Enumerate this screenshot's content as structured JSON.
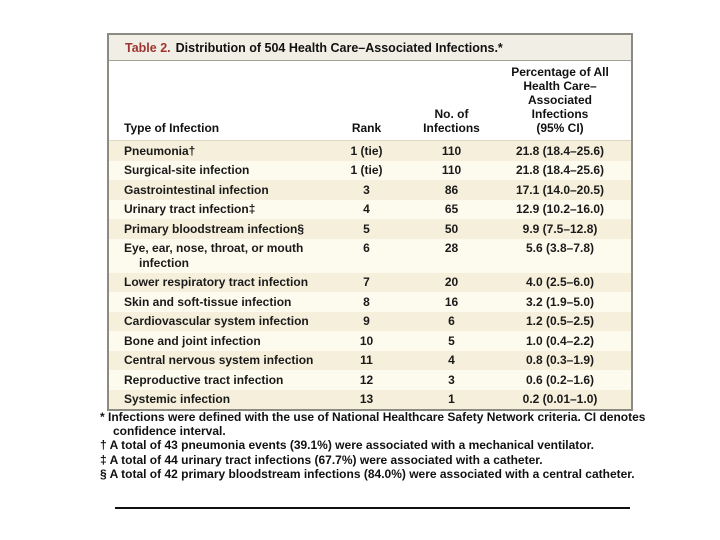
{
  "colors": {
    "title_label_red": "#9e3430",
    "card_border_gray": "#8b8b83",
    "title_bar_bg": "#f1efe5",
    "row_odd_bg": "#f6efdb",
    "row_even_bg": "#fdfaee",
    "header_bg": "#ffffff"
  },
  "table": {
    "title_label": "Table 2.",
    "title_text": "Distribution of 504 Health Care–Associated Infections.*",
    "columns": {
      "type": "Type of Infection",
      "rank": "Rank",
      "n": "No. of\nInfections",
      "pct": "Percentage of All\nHealth Care–\nAssociated\nInfections\n(95% CI)"
    },
    "rows": [
      {
        "type": "Pneumonia†",
        "rank": "1 (tie)",
        "n": "110",
        "pct": "21.8 (18.4–25.6)"
      },
      {
        "type": "Surgical-site infection",
        "rank": "1 (tie)",
        "n": "110",
        "pct": "21.8 (18.4–25.6)"
      },
      {
        "type": "Gastrointestinal infection",
        "rank": "3",
        "n": "86",
        "pct": "17.1 (14.0–20.5)"
      },
      {
        "type": "Urinary tract infection‡",
        "rank": "4",
        "n": "65",
        "pct": "12.9 (10.2–16.0)"
      },
      {
        "type": "Primary bloodstream infection§",
        "rank": "5",
        "n": "50",
        "pct": "9.9 (7.5–12.8)"
      },
      {
        "type": "Eye, ear, nose, throat, or mouth infection",
        "rank": "6",
        "n": "28",
        "pct": "5.6 (3.8–7.8)"
      },
      {
        "type": "Lower respiratory tract infection",
        "rank": "7",
        "n": "20",
        "pct": "4.0 (2.5–6.0)"
      },
      {
        "type": "Skin and soft-tissue infection",
        "rank": "8",
        "n": "16",
        "pct": "3.2 (1.9–5.0)"
      },
      {
        "type": "Cardiovascular system infection",
        "rank": "9",
        "n": "6",
        "pct": "1.2 (0.5–2.5)"
      },
      {
        "type": "Bone and joint infection",
        "rank": "10",
        "n": "5",
        "pct": "1.0 (0.4–2.2)"
      },
      {
        "type": "Central nervous system infection",
        "rank": "11",
        "n": "4",
        "pct": "0.8 (0.3–1.9)"
      },
      {
        "type": "Reproductive tract infection",
        "rank": "12",
        "n": "3",
        "pct": "0.6 (0.2–1.6)"
      },
      {
        "type": "Systemic infection",
        "rank": "13",
        "n": "1",
        "pct": "0.2 (0.01–1.0)"
      }
    ]
  },
  "footnotes": [
    {
      "symbol": "*",
      "text": "Infections were defined with the use of National Healthcare Safety Network criteria. CI denotes confidence interval."
    },
    {
      "symbol": "†",
      "text": "A total of 43 pneumonia events (39.1%) were associated with a mechanical ventilator."
    },
    {
      "symbol": "‡",
      "text": "A total of 44 urinary tract infections (67.7%) were associated with a catheter."
    },
    {
      "symbol": "§",
      "text": "A total of 42 primary bloodstream infections (84.0%) were associated with a central catheter."
    }
  ]
}
